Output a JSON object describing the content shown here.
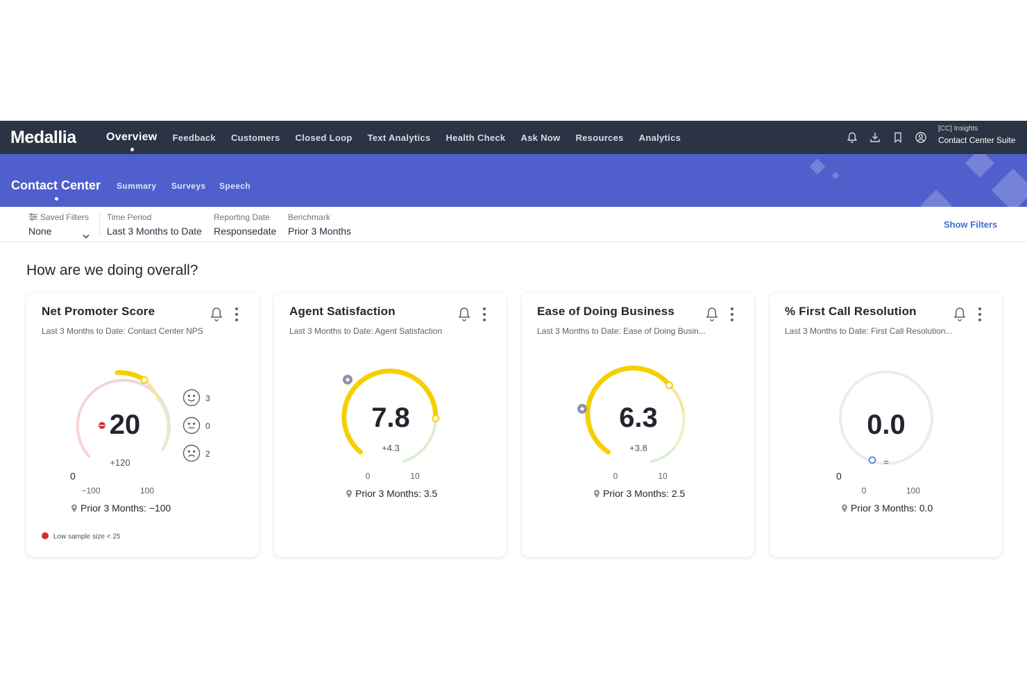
{
  "brand": "Medallia",
  "nav": {
    "items": [
      "Overview",
      "Feedback",
      "Customers",
      "Closed Loop",
      "Text Analytics",
      "Health Check",
      "Ask Now",
      "Resources",
      "Analytics"
    ],
    "icons": [
      "bell-icon",
      "download-icon",
      "bookmark-icon",
      "user-circle-icon"
    ],
    "suite_label": "[CC] Insights",
    "suite_name": "Contact Center Suite"
  },
  "banner": {
    "title": "Contact Center",
    "tabs": [
      "Summary",
      "Surveys",
      "Speech"
    ],
    "color": "#4f5fcc"
  },
  "filters": {
    "saved_label": "Saved Filters",
    "saved_value": "None",
    "time_label": "Time Period",
    "time_value": "Last 3 Months to Date",
    "reporting_label": "Reporting Date",
    "reporting_value": "Responsedate",
    "benchmark_label": "Benchmark",
    "benchmark_value": "Prior 3 Months",
    "show_filters": "Show Filters"
  },
  "section_title": "How are we doing overall?",
  "cards": [
    {
      "title": "Net Promoter Score",
      "subtitle": "Last 3 Months to Date: Contact Center NPS",
      "value": "20",
      "delta": "+120",
      "min": "−100",
      "max": "100",
      "side_zero": "0",
      "prior": "Prior 3 Months: −100",
      "promoters": "3",
      "passives": "0",
      "detractors": "2",
      "low_sample": "Low sample size < 25"
    },
    {
      "title": "Agent Satisfaction",
      "subtitle": "Last 3 Months to Date: Agent Satisfaction",
      "value": "7.8",
      "delta": "+4.3",
      "min": "0",
      "max": "10",
      "prior": "Prior 3 Months: 3.5"
    },
    {
      "title": "Ease of Doing Business",
      "subtitle": "Last 3 Months to Date: Ease of Doing Busin...",
      "value": "6.3",
      "delta": "+3.8",
      "min": "0",
      "max": "10",
      "prior": "Prior 3 Months: 2.5"
    },
    {
      "title": "% First Call Resolution",
      "subtitle": "Last 3 Months to Date: First Call Resolution...",
      "value": "0.0",
      "delta": "=",
      "min": "0",
      "max": "100",
      "side_zero": "0",
      "prior": "Prior 3 Months: 0.0"
    }
  ],
  "colors": {
    "navbar": "#2b3445",
    "gauge_yellow": "#f5d000",
    "gauge_green": "#c9eac4",
    "gauge_red": "#f7c9c9",
    "link": "#3d6fd3"
  }
}
